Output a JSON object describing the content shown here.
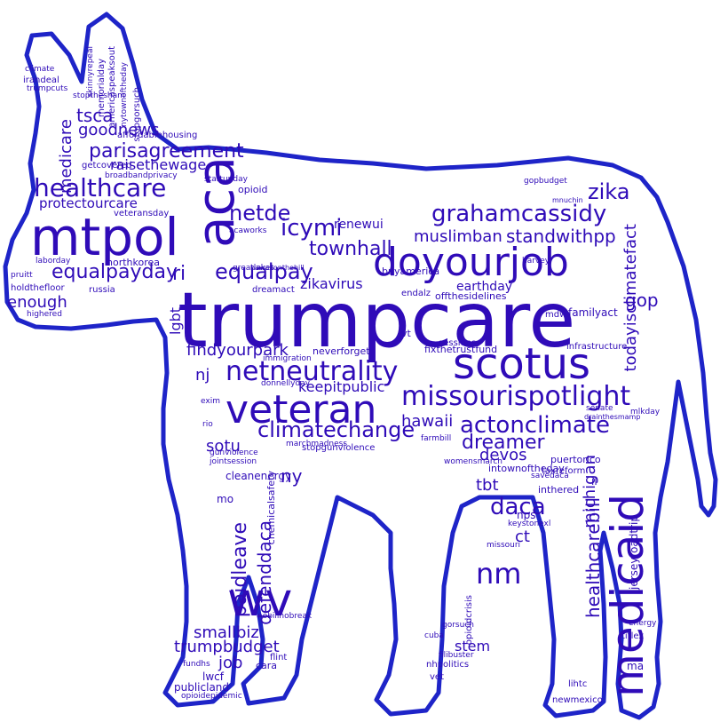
{
  "colors": {
    "word": "#2f0bb8",
    "outline": "#1e24c8",
    "background": "#ffffff"
  },
  "words": {
    "trumpcare": "trumpcare",
    "mtpol": "mtpol",
    "aca": "aca",
    "doyourjob": "doyourjob",
    "scotus": "scotus",
    "veteran": "veteran",
    "medicaid": "medicaid",
    "wv": "wv",
    "nm": "nm",
    "netneutrality": "netneutrality",
    "missourispotlight": "missourispotlight",
    "climatechange": "climatechange",
    "actonclimate": "actonclimate",
    "healthcare": "healthcare",
    "grahamcassidy": "grahamcassidy",
    "parisagreement": "parisagreement",
    "equalpayday": "equalpayday",
    "equalpay": "equalpay",
    "netde": "netde",
    "icymi": "icymi",
    "townhall": "townhall",
    "zika": "zika",
    "standwithpp": "standwithpp",
    "muslimban": "muslimban",
    "dreamer": "dreamer",
    "daca": "daca",
    "hawaii": "hawaii",
    "devos": "devos",
    "sotu": "sotu",
    "paidleave": "paidleave",
    "defenddaca": "defenddaca",
    "tsca": "tsca",
    "goodnews": "goodnews",
    "medicare": "medicare",
    "raisethewage": "raisethewage",
    "protectourcare": "protectourcare",
    "todayisclimatefact": "todayisclimatefact",
    "findyourpark": "findyourpark",
    "keepitpublic": "keepitpublic",
    "zikavirus": "zikavirus",
    "renewui": "renewui",
    "earthday": "earthday",
    "smallbiz": "smallbiz",
    "trumpbudget": "trumpbudget",
    "healthcarebill": "healthcarebill",
    "michigan": "michigan",
    "gop": "gop",
    "enough": "enough",
    "ri": "ri",
    "nj": "nj",
    "ny": "ny",
    "job": "job",
    "lgbt": "lgbt",
    "tbt": "tbt",
    "ct": "ct",
    "stem": "stem",
    "northkorea": "northkorea",
    "familyact": "familyact",
    "jerseyroadtrip": "jerseyroadtrip",
    "cleanenergy": "cleanenergy",
    "publicland": "publicland",
    "opioid": "opioid",
    "affordablehousing": "affordablehousing",
    "getcovered": "getcovered",
    "veteransday": "veteransday",
    "neverforget": "neverforget",
    "intheredd": "inthered",
    "intownoftheday": "intownoftheday",
    "buyamerica": "buyamerica",
    "offthesidelines": "offthesidelines",
    "endalz": "endalz",
    "puertorico": "puertorico",
    "nps": "nps",
    "mo": "mo",
    "ma": "ma",
    "immigration": "immigration",
    "chemicalsafety": "chemicalsafety",
    "marchmadness": "marchmadness",
    "holdthefloor": "holdthefloor",
    "russia": "russia",
    "dreamact": "dreamact",
    "greatlakes": "greatlakes",
    "acaworks": "acaworks",
    "climate": "climate",
    "irandeal": "irandeal",
    "trumpcuts": "trumpcuts",
    "fixthetrustfund": "fixthetrustfund",
    "sessions": "sessions",
    "womensmarch": "womensmarch",
    "farmbill": "farmbill",
    "taxreform": "taxreform",
    "opioidcrisis": "opioidcrisis",
    "nhpolitics": "nhpolitics",
    "vet": "vet",
    "cara": "cara",
    "flint": "flint",
    "lwcf": "lwcf",
    "fundhs": "fundhs",
    "opioidepidemic": "opioidepidemic",
    "newmexico": "newmexico",
    "lihtc": "lihtc",
    "titlex": "titlex",
    "energy": "energy",
    "gorsuch": "gorsuch",
    "filibuster": "filibuster",
    "laborday": "laborday",
    "pruitt": "pruitt",
    "highered": "highered",
    "hawaiionthehill": "hawaiionthehill",
    "exim": "exim",
    "rio": "rio",
    "sotu2": "sotu",
    "savedaca": "savedaca",
    "il": "il",
    "vt": "vt",
    "nrdcdtrace": "nobillnobreak",
    "jointsession": "jointsession",
    "guinviolence": "gunviolence",
    "gopbudget": "gopbudget",
    "mnuchin": "mnuchin",
    "mlkday": "mlkday",
    "senate": "senate",
    "harvey": "harvey",
    "cubf": "cuba",
    "keystonexl": "keystonexl",
    "missouri": "missouri",
    "donnellyday": "donnellyday",
    "stopgunviolence": "stopgunviolence",
    "broadbandprivacy": "broadbandprivacy",
    "stopthesham": "stopthesham",
    "startupday": "startupday",
    "infrastructure": "infrastructure",
    "drainthesmamp": "drainthesmamp",
    "mdw": "mdw",
    "stogorsuch": "stopgorsuch",
    "americaspeaksout": "americaspeaksout",
    "memorialday": "memorialday",
    "nytownoftheday": "nytownoftheday",
    "skinnyrepeal": "skinnyrepeal"
  }
}
